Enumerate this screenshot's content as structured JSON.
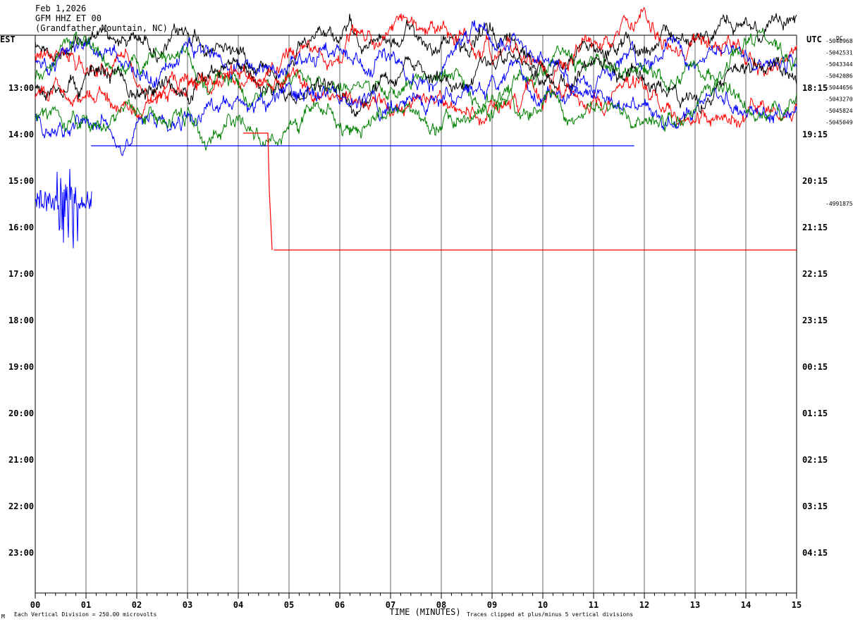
{
  "header": {
    "date": "Feb 1,2026",
    "station": "GFM HHZ ET 00",
    "location": "(Grandfather Mountain, NC)"
  },
  "colors": {
    "trace_cycle": [
      "#000000",
      "#ff0000",
      "#0000ff",
      "#008000"
    ],
    "grid": "#000000",
    "background": "#ffffff"
  },
  "chart_data": {
    "type": "line",
    "title": "GFM HHZ ET 00",
    "xlabel": "TIME (MINUTES)",
    "x_tick_labels": [
      "00",
      "01",
      "02",
      "03",
      "04",
      "05",
      "06",
      "07",
      "08",
      "09",
      "10",
      "11",
      "12",
      "13",
      "14",
      "15"
    ],
    "xlim": [
      0,
      15
    ],
    "left_axis_title": "EST",
    "right_axis_title": "UTC",
    "left_hour_labels": [
      "13:00",
      "14:00",
      "15:00",
      "16:00",
      "17:00",
      "18:00",
      "19:00",
      "20:00",
      "21:00",
      "22:00",
      "23:00"
    ],
    "right_hour_labels": [
      "18:15",
      "19:15",
      "20:15",
      "21:15",
      "22:15",
      "23:15",
      "00:15",
      "01:15",
      "02:15",
      "03:15",
      "04:15"
    ],
    "dc_label": "DC",
    "dc_offsets": [
      "-5040968",
      "-5042531",
      "-5043344",
      "-5042086",
      "-5044656",
      "-5043270",
      "-5045824",
      "-5045049",
      "-4991875"
    ],
    "footer_left": "Each Vertical Division =  250.00 microvolts",
    "footer_right": "Traces clipped at plus/minus 5 vertical divisions",
    "corner_mark": "M",
    "grid": true,
    "trace_count_per_hour": 4,
    "flat_segments": [
      {
        "label": "blue flat after event",
        "minute_start": 1.1,
        "minute_end": 11.8,
        "hour_offset": 1.25,
        "color": "#0000ff"
      },
      {
        "label": "red step",
        "minute_start": 4.7,
        "minute_end": 15,
        "hour_offset": 3.5,
        "color": "#ff0000"
      }
    ]
  }
}
